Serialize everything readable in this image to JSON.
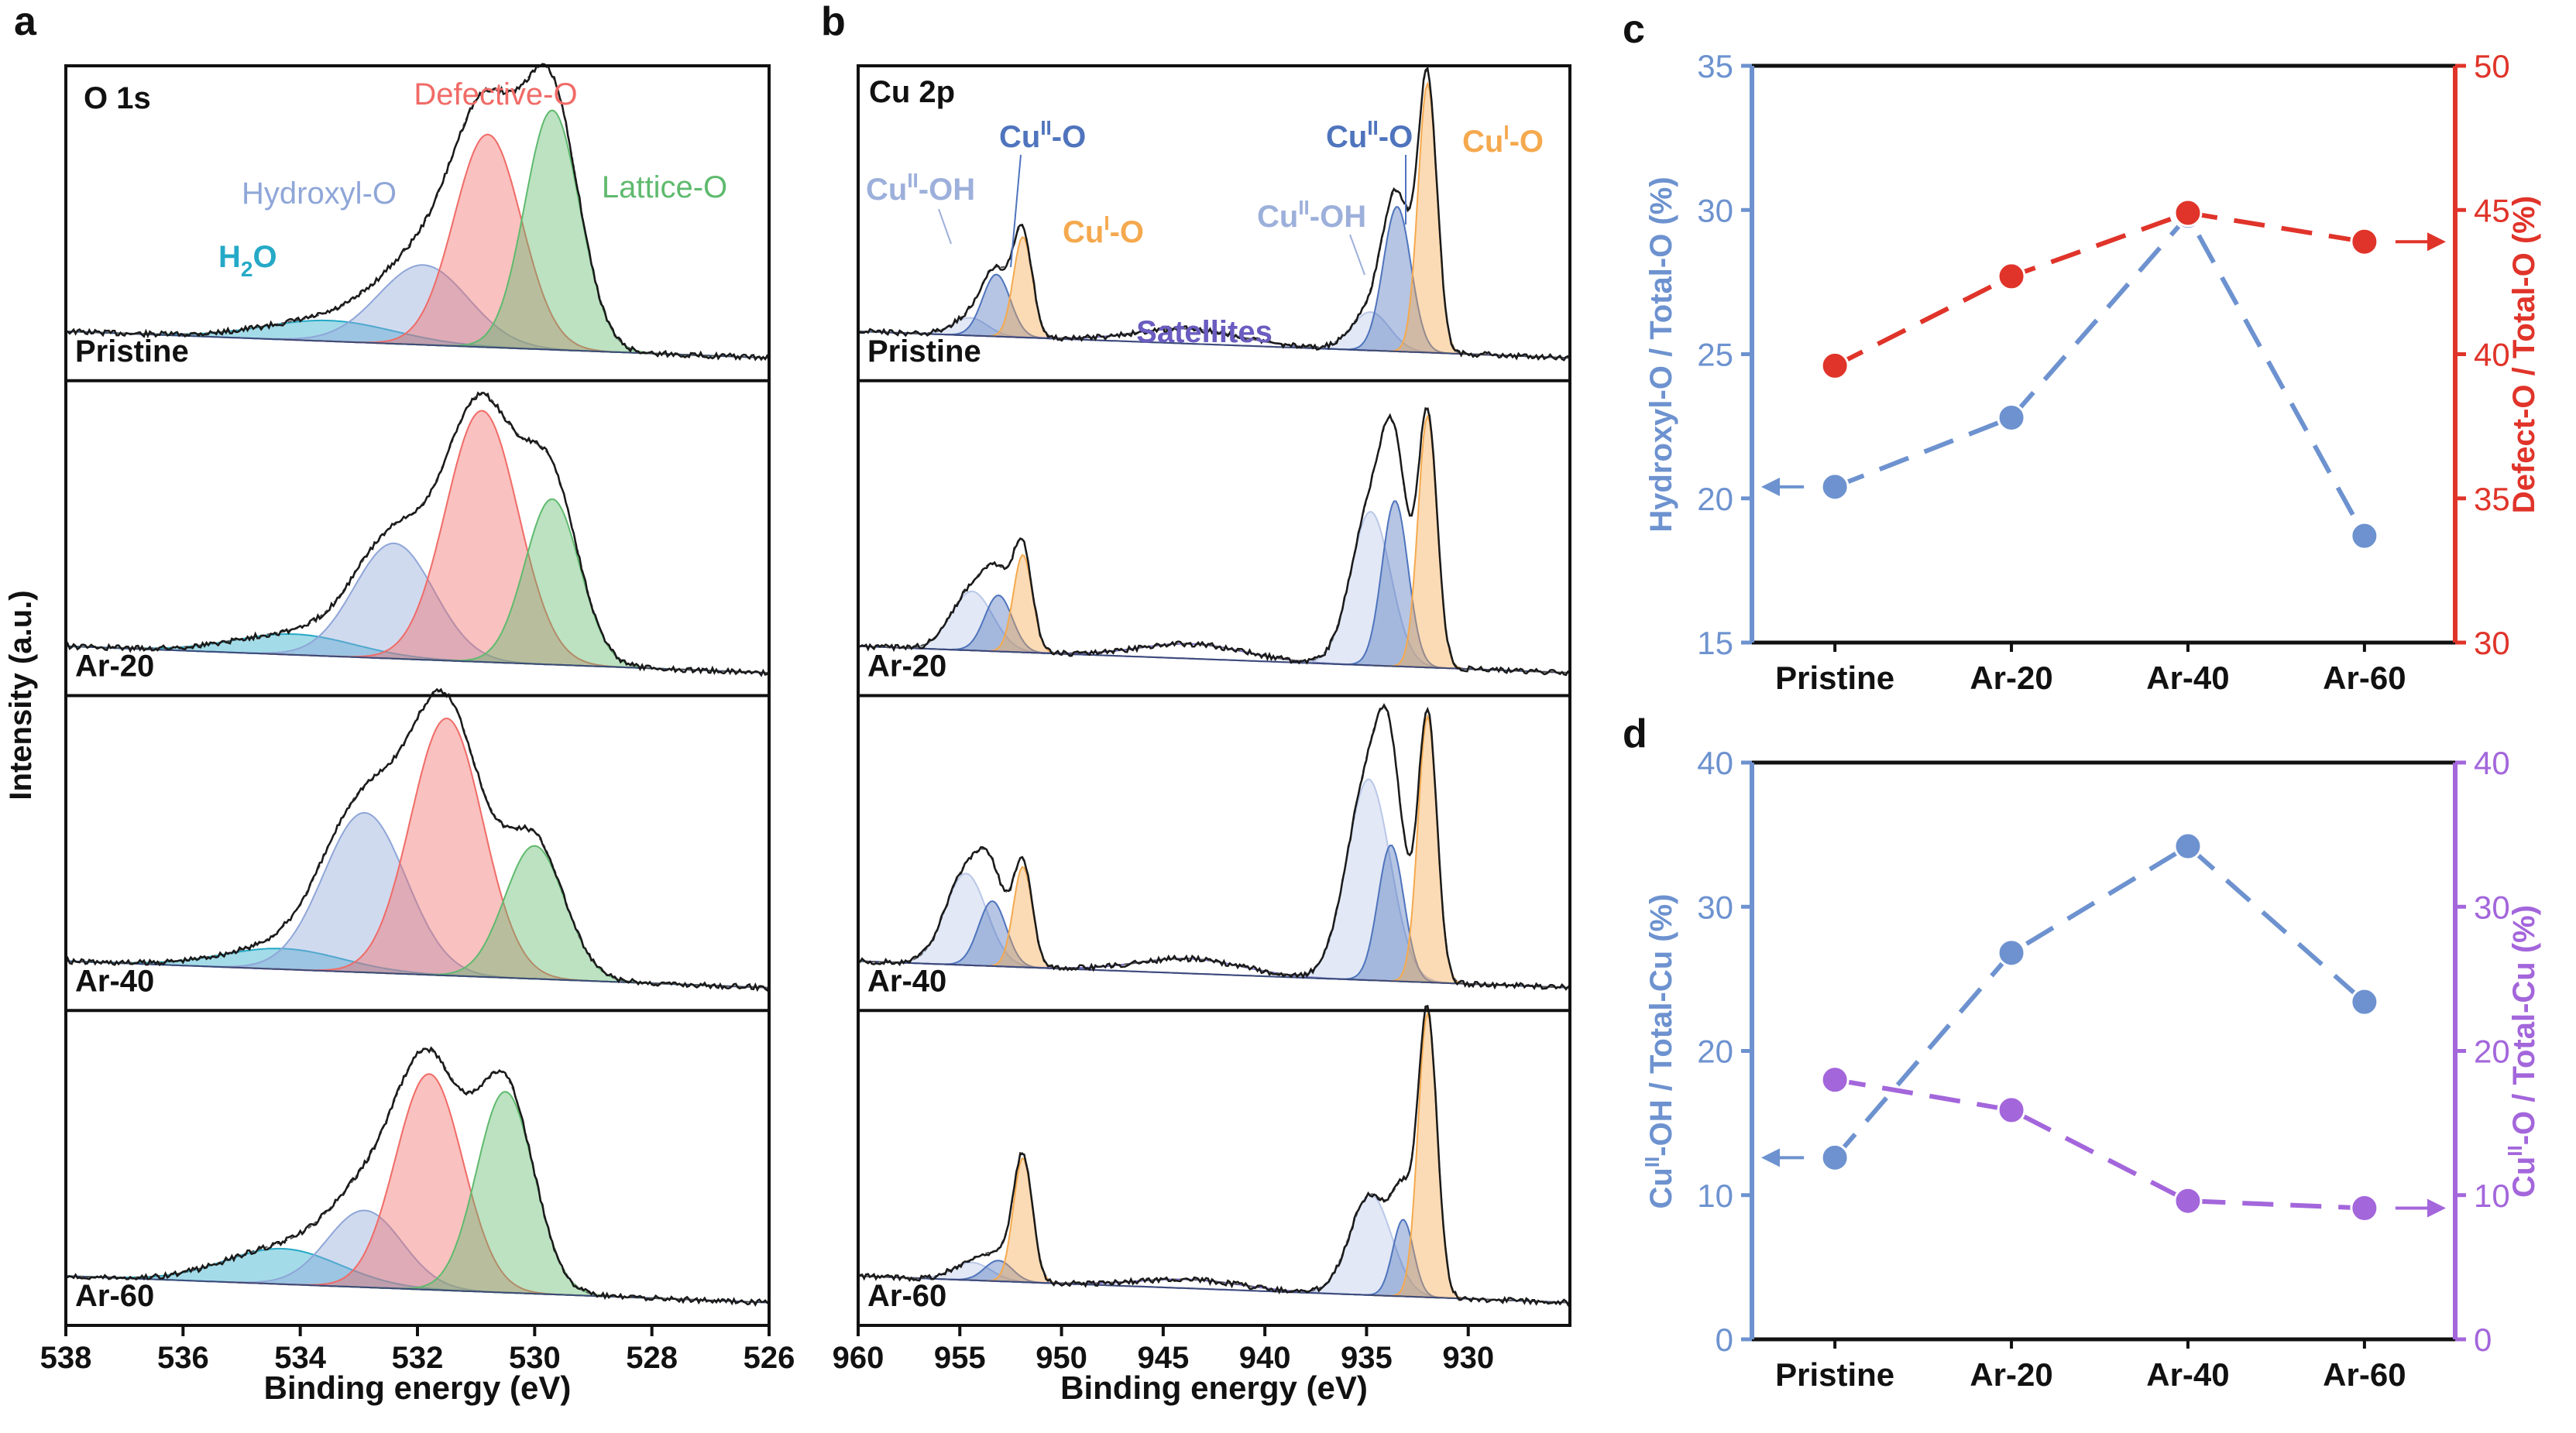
{
  "panels": {
    "a": {
      "letter": "a",
      "element_label": "O 1s",
      "xlabel": "Binding energy (eV)",
      "ylabel": "Intensity (a.u.)",
      "x_ticks": [
        "538",
        "536",
        "534",
        "532",
        "530",
        "528",
        "526"
      ],
      "samples": [
        "Pristine",
        "Ar-20",
        "Ar-40",
        "Ar-60"
      ],
      "labels": {
        "h2o": "H",
        "h2o_sub": "2",
        "h2o_tail": "O",
        "hydroxyl": "Hydroxyl-O",
        "defective": "Defective-O",
        "lattice": "Lattice-O"
      }
    },
    "b": {
      "letter": "b",
      "element_label": "Cu 2p",
      "xlabel": "Binding energy (eV)",
      "x_ticks": [
        "960",
        "955",
        "950",
        "945",
        "940",
        "935",
        "930"
      ],
      "samples": [
        "Pristine",
        "Ar-20",
        "Ar-40",
        "Ar-60"
      ],
      "labels": {
        "cu": "Cu",
        "sup_ii": "II",
        "sup_i": "I",
        "oh_suffix": "-OH",
        "o_suffix": "-O",
        "satellites": "Satellites"
      }
    },
    "c": {
      "letter": "c"
    },
    "d": {
      "letter": "d"
    }
  },
  "chart_data": [
    {
      "type": "line",
      "id": "xps-o1s",
      "title": "O 1s",
      "xlabel": "Binding energy (eV)",
      "ylabel": "Intensity (a.u.)",
      "xlim": [
        538,
        526
      ],
      "components": [
        {
          "name": "H2O",
          "color": "#25a9c7"
        },
        {
          "name": "Hydroxyl-O",
          "color": "#8fa6d8"
        },
        {
          "name": "Defective-O",
          "color": "#f06b67"
        },
        {
          "name": "Lattice-O",
          "color": "#5fba6e"
        }
      ],
      "spectra": [
        {
          "sample": "Pristine",
          "peaks": [
            {
              "name": "H2O",
              "center": 533.5,
              "height": 0.07,
              "fwhm": 2.6
            },
            {
              "name": "Hydroxyl-O",
              "center": 531.9,
              "height": 0.27,
              "fwhm": 1.8
            },
            {
              "name": "Defective-O",
              "center": 530.8,
              "height": 0.72,
              "fwhm": 1.35
            },
            {
              "name": "Lattice-O",
              "center": 529.7,
              "height": 0.81,
              "fwhm": 1.1
            }
          ]
        },
        {
          "sample": "Ar-20",
          "peaks": [
            {
              "name": "H2O",
              "center": 534.1,
              "height": 0.07,
              "fwhm": 2.4
            },
            {
              "name": "Hydroxyl-O",
              "center": 532.4,
              "height": 0.39,
              "fwhm": 1.6
            },
            {
              "name": "Defective-O",
              "center": 530.9,
              "height": 0.85,
              "fwhm": 1.45
            },
            {
              "name": "Lattice-O",
              "center": 529.7,
              "height": 0.56,
              "fwhm": 1.1
            }
          ]
        },
        {
          "sample": "Ar-40",
          "peaks": [
            {
              "name": "H2O",
              "center": 534.3,
              "height": 0.07,
              "fwhm": 2.4
            },
            {
              "name": "Hydroxyl-O",
              "center": 532.9,
              "height": 0.54,
              "fwhm": 1.65
            },
            {
              "name": "Defective-O",
              "center": 531.5,
              "height": 0.87,
              "fwhm": 1.45
            },
            {
              "name": "Lattice-O",
              "center": 530.0,
              "height": 0.45,
              "fwhm": 1.2
            }
          ]
        },
        {
          "sample": "Ar-60",
          "peaks": [
            {
              "name": "H2O",
              "center": 534.3,
              "height": 0.12,
              "fwhm": 2.3
            },
            {
              "name": "Hydroxyl-O",
              "center": 532.9,
              "height": 0.26,
              "fwhm": 1.5
            },
            {
              "name": "Defective-O",
              "center": 531.8,
              "height": 0.73,
              "fwhm": 1.35
            },
            {
              "name": "Lattice-O",
              "center": 530.5,
              "height": 0.68,
              "fwhm": 1.15
            }
          ]
        }
      ]
    },
    {
      "type": "line",
      "id": "xps-cu2p",
      "title": "Cu 2p",
      "xlabel": "Binding energy (eV)",
      "xlim": [
        960,
        925
      ],
      "components": [
        {
          "name": "CuII-OH",
          "color": "#b9c7e8"
        },
        {
          "name": "CuII-O",
          "color": "#4f74bd"
        },
        {
          "name": "CuI-O",
          "color": "#f5a94e"
        },
        {
          "name": "Satellites",
          "color": "#7a6ccf"
        }
      ],
      "spectra": [
        {
          "sample": "Pristine",
          "peaks": [
            {
              "name": "CuII-OH",
              "center": 954.5,
              "height": 0.06,
              "fwhm": 2.0
            },
            {
              "name": "CuII-O",
              "center": 953.2,
              "height": 0.21,
              "fwhm": 1.6
            },
            {
              "name": "CuI-O",
              "center": 951.9,
              "height": 0.34,
              "fwhm": 1.1
            },
            {
              "name": "Satellites",
              "center": 943.8,
              "height": 0.05,
              "fwhm": 6.0
            },
            {
              "name": "CuII-OH",
              "center": 934.8,
              "height": 0.13,
              "fwhm": 2.2
            },
            {
              "name": "CuII-O",
              "center": 933.5,
              "height": 0.49,
              "fwhm": 1.6
            },
            {
              "name": "CuI-O",
              "center": 932.0,
              "height": 0.91,
              "fwhm": 1.1
            }
          ]
        },
        {
          "sample": "Ar-20",
          "peaks": [
            {
              "name": "CuII-OH",
              "center": 954.4,
              "height": 0.2,
              "fwhm": 2.4
            },
            {
              "name": "CuII-O",
              "center": 953.1,
              "height": 0.19,
              "fwhm": 1.6
            },
            {
              "name": "CuI-O",
              "center": 951.9,
              "height": 0.33,
              "fwhm": 1.1
            },
            {
              "name": "Satellites",
              "center": 943.6,
              "height": 0.05,
              "fwhm": 6.0
            },
            {
              "name": "CuII-OH",
              "center": 934.8,
              "height": 0.52,
              "fwhm": 2.3
            },
            {
              "name": "CuII-O",
              "center": 933.6,
              "height": 0.56,
              "fwhm": 1.5
            },
            {
              "name": "CuI-O",
              "center": 932.0,
              "height": 0.85,
              "fwhm": 1.1
            }
          ]
        },
        {
          "sample": "Ar-40",
          "peaks": [
            {
              "name": "CuII-OH",
              "center": 954.7,
              "height": 0.31,
              "fwhm": 2.4
            },
            {
              "name": "CuII-O",
              "center": 953.4,
              "height": 0.22,
              "fwhm": 1.6
            },
            {
              "name": "CuI-O",
              "center": 951.9,
              "height": 0.34,
              "fwhm": 1.1
            },
            {
              "name": "Satellites",
              "center": 943.7,
              "height": 0.05,
              "fwhm": 6.0
            },
            {
              "name": "CuII-OH",
              "center": 934.9,
              "height": 0.68,
              "fwhm": 2.5
            },
            {
              "name": "CuII-O",
              "center": 933.8,
              "height": 0.46,
              "fwhm": 1.5
            },
            {
              "name": "CuI-O",
              "center": 932.0,
              "height": 0.9,
              "fwhm": 1.1
            }
          ]
        },
        {
          "sample": "Ar-60",
          "peaks": [
            {
              "name": "CuII-OH",
              "center": 954.4,
              "height": 0.06,
              "fwhm": 2.2
            },
            {
              "name": "CuII-O",
              "center": 953.1,
              "height": 0.07,
              "fwhm": 1.6
            },
            {
              "name": "CuI-O",
              "center": 951.9,
              "height": 0.42,
              "fwhm": 1.1
            },
            {
              "name": "Satellites",
              "center": 943.7,
              "height": 0.03,
              "fwhm": 6.0
            },
            {
              "name": "CuII-OH",
              "center": 934.8,
              "height": 0.34,
              "fwhm": 2.4
            },
            {
              "name": "CuII-O",
              "center": 933.2,
              "height": 0.26,
              "fwhm": 1.2
            },
            {
              "name": "CuI-O",
              "center": 932.0,
              "height": 0.96,
              "fwhm": 1.1
            }
          ]
        }
      ]
    },
    {
      "type": "line",
      "id": "ratio-oxygen",
      "categories": [
        "Pristine",
        "Ar-20",
        "Ar-40",
        "Ar-60"
      ],
      "ylabel": "Hydroxyl-O / Total-O (%)",
      "ylim": [
        15,
        35
      ],
      "yticks": [
        "15",
        "20",
        "25",
        "30",
        "35"
      ],
      "y2label": "Defect-O / Total-O (%)",
      "y2lim": [
        30,
        50
      ],
      "y2ticks": [
        "30",
        "35",
        "40",
        "45",
        "50"
      ],
      "series": [
        {
          "name": "Hydroxyl-O / Total-O (%)",
          "axis": "left",
          "color": "#6d92cf",
          "values": [
            20.4,
            22.8,
            29.8,
            18.7
          ]
        },
        {
          "name": "Defect-O / Total-O (%)",
          "axis": "right",
          "color": "#e0342a",
          "values": [
            39.6,
            42.7,
            44.9,
            43.9
          ]
        }
      ]
    },
    {
      "type": "line",
      "id": "ratio-copper",
      "categories": [
        "Pristine",
        "Ar-20",
        "Ar-40",
        "Ar-60"
      ],
      "ylabel": "CuII-OH / Total-Cu (%)",
      "ylim": [
        0,
        40
      ],
      "yticks": [
        "0",
        "10",
        "20",
        "30",
        "40"
      ],
      "y2label": "CuII-O / Total-Cu (%)",
      "y2lim": [
        0,
        40
      ],
      "y2ticks": [
        "0",
        "10",
        "20",
        "30",
        "40"
      ],
      "series": [
        {
          "name": "CuII-OH / Total-Cu (%)",
          "axis": "left",
          "color": "#6d92cf",
          "values": [
            12.6,
            26.8,
            34.2,
            23.4
          ]
        },
        {
          "name": "CuII-O / Total-Cu (%)",
          "axis": "right",
          "color": "#a366db",
          "values": [
            18.0,
            15.9,
            9.6,
            9.1
          ]
        }
      ]
    }
  ],
  "colors": {
    "frame": "#111111",
    "left_axis_blue": "#6d92cf",
    "right_axis_red": "#e0342a",
    "right_axis_purple": "#a366db"
  }
}
